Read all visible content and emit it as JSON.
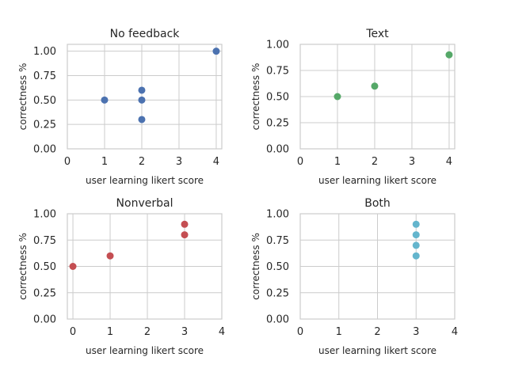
{
  "chart_data": [
    {
      "type": "scatter",
      "title": "No feedback",
      "xlabel": "user learning likert score",
      "ylabel": "correctness %",
      "xlim": [
        0,
        4.15
      ],
      "ylim": [
        0,
        1.07
      ],
      "xticks": [
        0,
        1,
        2,
        3,
        4
      ],
      "xtick_labels": [
        "0",
        "1",
        "2",
        "3",
        "4"
      ],
      "yticks": [
        0,
        0.25,
        0.5,
        0.75,
        1.0
      ],
      "ytick_labels": [
        "0.00",
        "0.25",
        "0.50",
        "0.75",
        "1.00"
      ],
      "grid": true,
      "color": "#4c72b0",
      "points": [
        {
          "x": 1,
          "y": 0.5
        },
        {
          "x": 2,
          "y": 0.6
        },
        {
          "x": 2,
          "y": 0.5
        },
        {
          "x": 2,
          "y": 0.3
        },
        {
          "x": 4,
          "y": 1.0
        }
      ]
    },
    {
      "type": "scatter",
      "title": "Text",
      "xlabel": "user learning likert score",
      "ylabel": "correctness %",
      "xlim": [
        0,
        4.15
      ],
      "ylim": [
        0,
        1.0
      ],
      "xticks": [
        0,
        1,
        2,
        3,
        4
      ],
      "xtick_labels": [
        "0",
        "1",
        "2",
        "3",
        "4"
      ],
      "yticks": [
        0,
        0.25,
        0.5,
        0.75,
        1.0
      ],
      "ytick_labels": [
        "0.00",
        "0.25",
        "0.50",
        "0.75",
        "1.00"
      ],
      "grid": true,
      "color": "#55a868",
      "points": [
        {
          "x": 1,
          "y": 0.5
        },
        {
          "x": 2,
          "y": 0.6
        },
        {
          "x": 4,
          "y": 0.9
        }
      ]
    },
    {
      "type": "scatter",
      "title": "Nonverbal",
      "xlabel": "user learning likert score",
      "ylabel": "correctness %",
      "xlim": [
        -0.15,
        4.0
      ],
      "ylim": [
        0,
        1.0
      ],
      "xticks": [
        0,
        1,
        2,
        3,
        4
      ],
      "xtick_labels": [
        "0",
        "1",
        "2",
        "3",
        "4"
      ],
      "yticks": [
        0,
        0.25,
        0.5,
        0.75,
        1.0
      ],
      "ytick_labels": [
        "0.00",
        "0.25",
        "0.50",
        "0.75",
        "1.00"
      ],
      "grid": true,
      "color": "#c44e52",
      "points": [
        {
          "x": 0,
          "y": 0.5
        },
        {
          "x": 1,
          "y": 0.6
        },
        {
          "x": 3,
          "y": 0.9
        },
        {
          "x": 3,
          "y": 0.8
        }
      ]
    },
    {
      "type": "scatter",
      "title": "Both",
      "xlabel": "user learning likert score",
      "ylabel": "correctness %",
      "xlim": [
        0,
        4.0
      ],
      "ylim": [
        0,
        1.0
      ],
      "xticks": [
        0,
        1,
        2,
        3,
        4
      ],
      "xtick_labels": [
        "0",
        "1",
        "2",
        "3",
        "4"
      ],
      "yticks": [
        0,
        0.25,
        0.5,
        0.75,
        1.0
      ],
      "ytick_labels": [
        "0.00",
        "0.25",
        "0.50",
        "0.75",
        "1.00"
      ],
      "grid": true,
      "color": "#64b5cd",
      "points": [
        {
          "x": 3,
          "y": 0.9
        },
        {
          "x": 3,
          "y": 0.8
        },
        {
          "x": 3,
          "y": 0.7
        },
        {
          "x": 3,
          "y": 0.6
        }
      ]
    }
  ]
}
